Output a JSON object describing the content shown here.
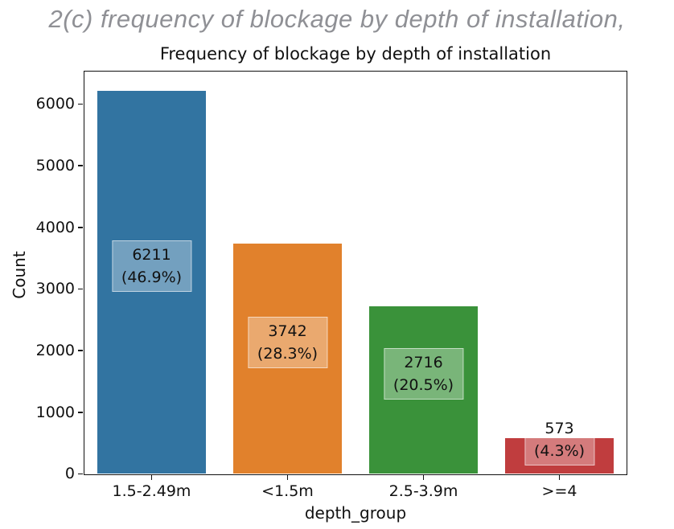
{
  "heading": {
    "text": "2(c) frequency of blockage by depth of installation,",
    "color": "#8f9095"
  },
  "chart_data": {
    "type": "bar",
    "title": "Frequency of blockage by depth of installation",
    "xlabel": "depth_group",
    "ylabel": "Count",
    "categories": [
      "1.5-2.49m",
      "<1.5m",
      "2.5-3.9m",
      ">=4"
    ],
    "values": [
      6211,
      3742,
      2716,
      573
    ],
    "percent_labels": [
      "(46.9%)",
      "(28.3%)",
      "(20.5%)",
      "(4.3%)"
    ],
    "bar_colors": [
      "#3274a1",
      "#e1812c",
      "#3a923a",
      "#c03d3e"
    ],
    "yticks": [
      0,
      1000,
      2000,
      3000,
      4000,
      5000,
      6000
    ],
    "ylim": [
      0,
      6520
    ],
    "grid": false,
    "legend": "none",
    "spines": "all-four"
  }
}
